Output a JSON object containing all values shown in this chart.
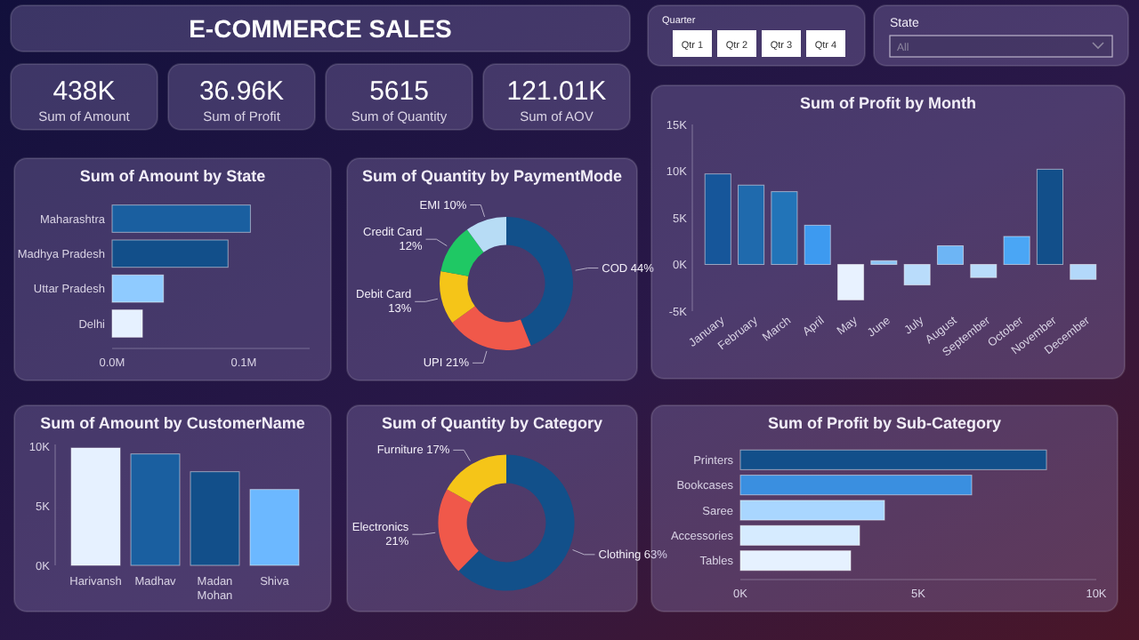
{
  "chart_data": [
    {
      "type": "other",
      "title": "E-COMMERCE SALES",
      "categories": [
        "Sum of Amount",
        "Sum of Profit",
        "Sum of Quantity",
        "Sum of AOV"
      ],
      "value_labels": [
        "438K",
        "36.96K",
        "5615",
        "121.01K"
      ]
    },
    {
      "type": "other",
      "title": "Quarter",
      "categories": [
        "Qtr 1",
        "Qtr 2",
        "Qtr 3",
        "Qtr 4"
      ]
    },
    {
      "type": "other",
      "title": "State",
      "annotations": [
        "All"
      ]
    },
    {
      "type": "bar",
      "orientation": "horizontal",
      "title": "Sum of Amount by State",
      "categories": [
        "Maharashtra",
        "Madhya Pradesh",
        "Uttar Pradesh",
        "Delhi"
      ],
      "values": [
        0.105,
        0.088,
        0.039,
        0.023
      ],
      "colors": [
        "#1a5fa0",
        "#124f8a",
        "#8fcbff",
        "#e6f1ff"
      ],
      "xlim": [
        0,
        0.15
      ],
      "xticks": [
        {
          "value": 0,
          "label": "0.0M"
        },
        {
          "value": 0.1,
          "label": "0.1M"
        }
      ]
    },
    {
      "type": "donut",
      "title": "Sum of Quantity by PaymentMode",
      "categories": [
        "COD",
        "UPI",
        "Debit Card",
        "Credit Card",
        "EMI"
      ],
      "values": [
        44,
        21,
        13,
        12,
        10
      ],
      "value_labels": [
        "44%",
        "21%",
        "13%",
        "12%",
        "10%"
      ],
      "colors": [
        "#12508a",
        "#f0584a",
        "#f5c518",
        "#1fc864",
        "#b7dcf5"
      ]
    },
    {
      "type": "bar",
      "title": "Sum of Profit by Month",
      "categories": [
        "January",
        "February",
        "March",
        "April",
        "May",
        "June",
        "July",
        "August",
        "September",
        "October",
        "November",
        "December"
      ],
      "values": [
        9700,
        8500,
        7800,
        4200,
        -3800,
        400,
        -2200,
        2000,
        -1400,
        3000,
        10200,
        -1600
      ],
      "colors": [
        "#16569a",
        "#1f6aad",
        "#2274b8",
        "#3d9af0",
        "#e8f2ff",
        "#8ec6f5",
        "#b9dcfb",
        "#6db5f5",
        "#b9dcfb",
        "#4aa6f5",
        "#124f8a",
        "#b3d8fa"
      ],
      "ylim": [
        -5000,
        15000
      ],
      "yticks": [
        {
          "value": -5000,
          "label": "-5K"
        },
        {
          "value": 0,
          "label": "0K"
        },
        {
          "value": 5000,
          "label": "5K"
        },
        {
          "value": 10000,
          "label": "10K"
        },
        {
          "value": 15000,
          "label": "15K"
        }
      ]
    },
    {
      "type": "bar",
      "title": "Sum of Amount by CustomerName",
      "categories": [
        "Harivansh",
        "Madhav",
        "Madan Mohan",
        "Shiva"
      ],
      "values": [
        9900,
        9400,
        7900,
        6400
      ],
      "colors": [
        "#e6f1ff",
        "#1a5fa0",
        "#124f8a",
        "#6cb8ff"
      ],
      "ylim": [
        0,
        10200
      ],
      "yticks": [
        {
          "value": 0,
          "label": "0K"
        },
        {
          "value": 5000,
          "label": "5K"
        },
        {
          "value": 10000,
          "label": "10K"
        }
      ]
    },
    {
      "type": "donut",
      "title": "Sum of Quantity by Category",
      "categories": [
        "Clothing",
        "Electronics",
        "Furniture"
      ],
      "values": [
        63,
        21,
        17
      ],
      "value_labels": [
        "63%",
        "21%",
        "17%"
      ],
      "colors": [
        "#12508a",
        "#f0584a",
        "#f5c518"
      ]
    },
    {
      "type": "bar",
      "orientation": "horizontal",
      "title": "Sum of Profit by Sub-Category",
      "categories": [
        "Printers",
        "Bookcases",
        "Saree",
        "Accessories",
        "Tables"
      ],
      "values": [
        8600,
        6500,
        4050,
        3350,
        3100
      ],
      "colors": [
        "#124f8a",
        "#3a8fe0",
        "#a9d6ff",
        "#d6ebff",
        "#e6f1ff"
      ],
      "xlim": [
        0,
        10000
      ],
      "xticks": [
        {
          "value": 0,
          "label": "0K"
        },
        {
          "value": 5000,
          "label": "5K"
        },
        {
          "value": 10000,
          "label": "10K"
        }
      ]
    }
  ]
}
